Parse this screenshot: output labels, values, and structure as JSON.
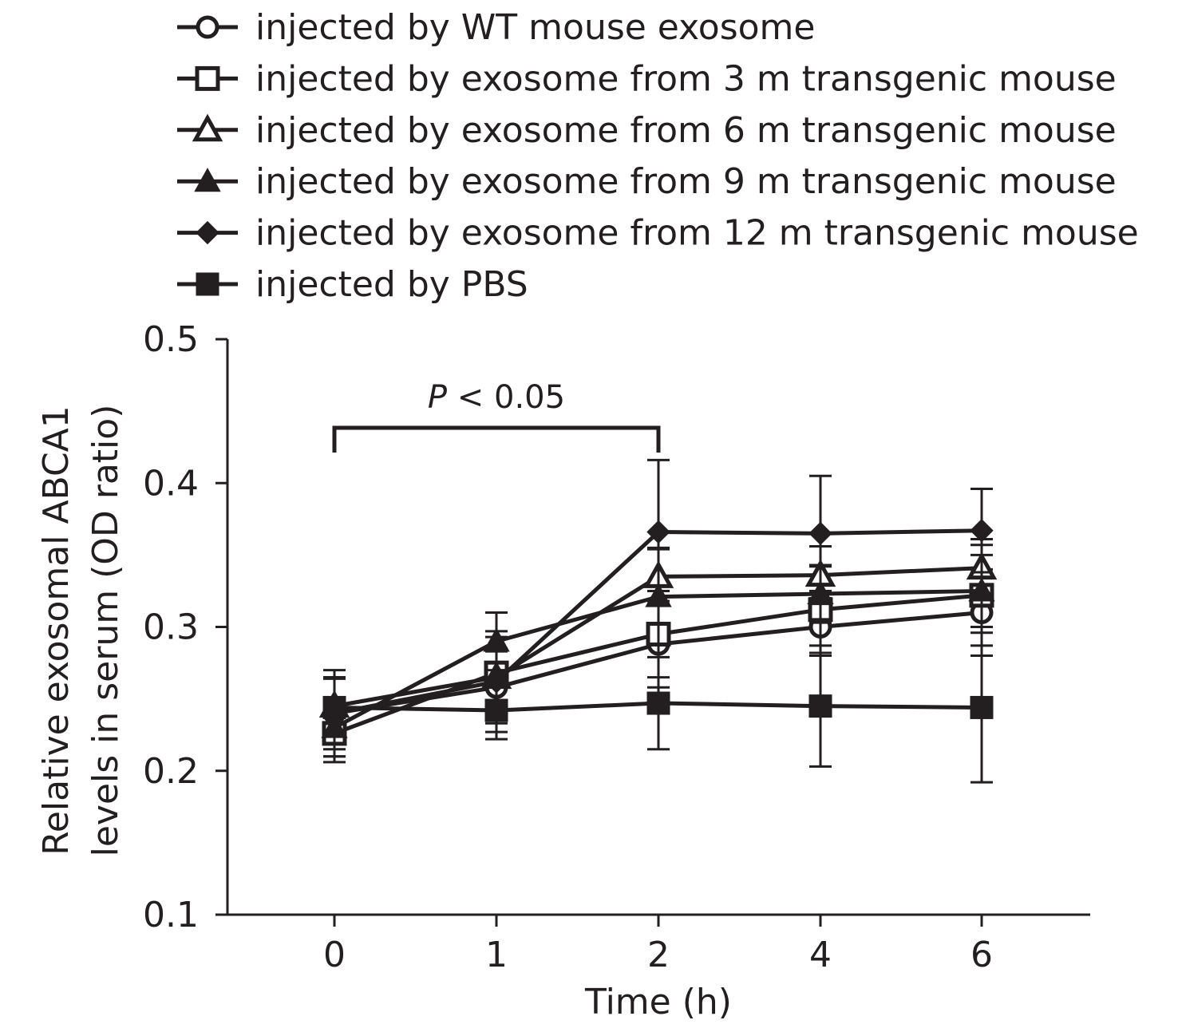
{
  "chart_data": {
    "type": "line",
    "xlabel": "Time (h)",
    "ylabel_lines": [
      "Relative exosomal ABCA1",
      "levels in serum (OD ratio)"
    ],
    "categories": [
      "0",
      "1",
      "2",
      "4",
      "6"
    ],
    "ylim": [
      0.1,
      0.5
    ],
    "yticks": [
      "0.1",
      "0.2",
      "0.3",
      "0.4",
      "0.5"
    ],
    "grid": false,
    "legend_position": "top",
    "series": [
      {
        "name": "injected by WT mouse exosome",
        "marker": "circle-open",
        "values": [
          0.24,
          0.258,
          0.288,
          0.3,
          0.31
        ],
        "errors": [
          0.03,
          0.025,
          0.03,
          0.02,
          0.03
        ]
      },
      {
        "name": "injected by exosome from 3 m transgenic mouse",
        "marker": "square-open",
        "values": [
          0.226,
          0.268,
          0.295,
          0.312,
          0.322
        ],
        "errors": [
          0.02,
          0.025,
          0.03,
          0.03,
          0.035
        ]
      },
      {
        "name": "injected by exosome from 6 m transgenic mouse",
        "marker": "triangle-open",
        "values": [
          0.245,
          0.265,
          0.335,
          0.336,
          0.341
        ],
        "errors": [
          0.02,
          0.02,
          0.02,
          0.02,
          0.02
        ]
      },
      {
        "name": "injected by exosome from 9 m transgenic mouse",
        "marker": "triangle-filled",
        "values": [
          0.23,
          0.29,
          0.321,
          0.323,
          0.325
        ],
        "errors": [
          0.02,
          0.02,
          0.033,
          0.02,
          0.025
        ]
      },
      {
        "name": "injected by exosome from 12 m transgenic mouse",
        "marker": "diamond-filled",
        "values": [
          0.24,
          0.262,
          0.366,
          0.365,
          0.367
        ],
        "errors": [
          0.025,
          0.035,
          0.05,
          0.04,
          0.029
        ]
      },
      {
        "name": "injected by PBS",
        "marker": "square-filled",
        "values": [
          0.244,
          0.242,
          0.247,
          0.245,
          0.244
        ],
        "errors": [
          0.02,
          0.02,
          0.032,
          0.042,
          0.052
        ]
      }
    ],
    "annotation": {
      "label_italic": "P",
      "label_rest": " < 0.05",
      "from": "0",
      "to": "2"
    }
  },
  "colors": {
    "ink": "#231f20",
    "background": "#ffffff"
  }
}
